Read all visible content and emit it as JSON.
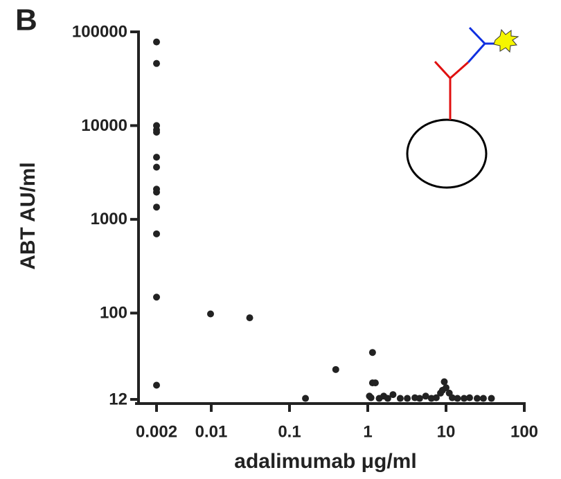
{
  "chart_data": {
    "type": "scatter",
    "panel_label": "B",
    "xlabel": "adalimumab μg/ml",
    "ylabel": "ABT AU/ml",
    "xscale": "log",
    "yscale": "log",
    "color": "#222222",
    "xlim": [
      0.001,
      100
    ],
    "ylim": [
      12,
      100000
    ],
    "xticks": [
      0.002,
      0.01,
      0.1,
      1,
      10,
      100
    ],
    "yticks": [
      12,
      100,
      1000,
      10000,
      100000
    ],
    "series": [
      {
        "name": null,
        "color": "#222222",
        "x": [
          0.002,
          0.002,
          0.002,
          0.002,
          0.002,
          0.002,
          0.002,
          0.002,
          0.002,
          0.002,
          0.002,
          0.002,
          0.002,
          0.0098,
          0.031,
          0.16,
          0.39,
          1.15,
          1.15,
          1.25,
          1.05,
          1.1,
          1.4,
          1.6,
          1.8,
          2.1,
          2.6,
          3.2,
          4.0,
          4.6,
          5.5,
          6.5,
          7.5,
          8.5,
          9.5,
          10,
          9,
          11,
          12,
          14,
          17,
          20,
          25,
          30,
          38
        ],
        "values": [
          78000,
          46000,
          10000,
          9000,
          8500,
          4600,
          3600,
          2100,
          1950,
          1350,
          700,
          148,
          17,
          98,
          89,
          12.3,
          25,
          38,
          18,
          18,
          13,
          12.5,
          12.3,
          13,
          12.3,
          13.5,
          12.3,
          12.3,
          12.5,
          12.3,
          13,
          12.3,
          12.5,
          14,
          18.5,
          16,
          15,
          14,
          12.5,
          12.3,
          12.3,
          12.5,
          12.3,
          12.3,
          12.3
        ]
      }
    ]
  }
}
